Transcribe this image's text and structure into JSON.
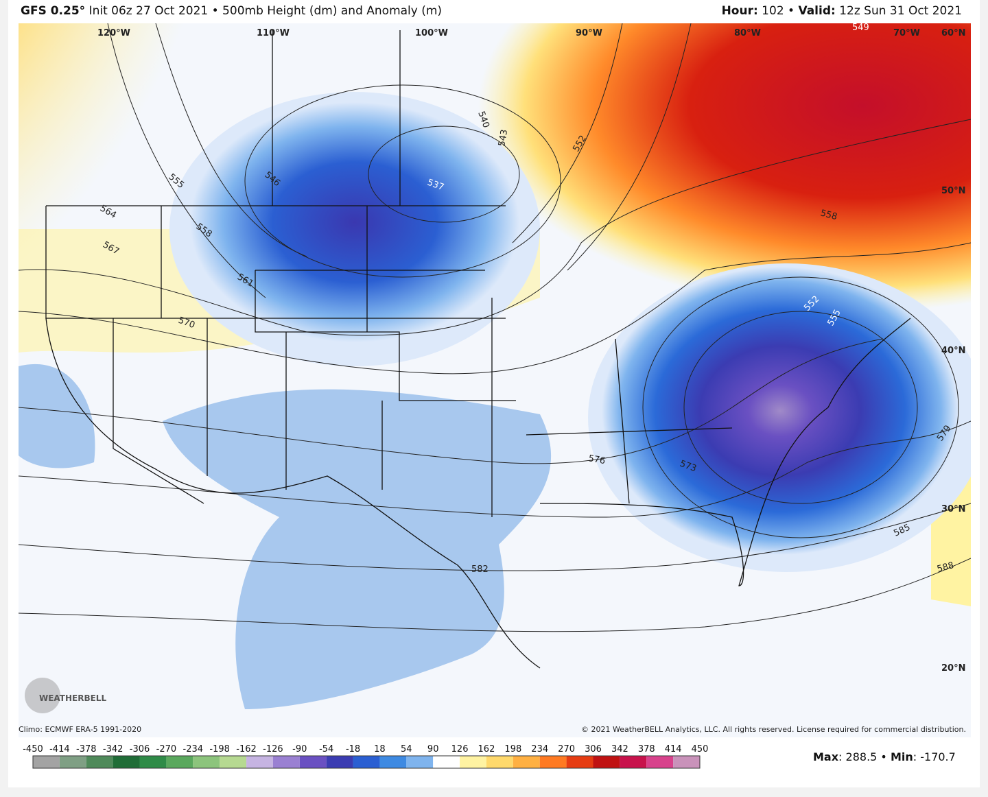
{
  "header": {
    "model": "GFS 0.25°",
    "description": " Init 06z 27 Oct 2021 • 500mb Height (dm) and Anomaly (m)",
    "hour_label": "Hour:",
    "hour": " 102 • ",
    "valid_label": "Valid:",
    "valid": " 12z Sun 31 Oct 2021"
  },
  "map": {
    "longitude_labels": [
      "120°W",
      "110°W",
      "100°W",
      "90°W",
      "80°W",
      "70°W"
    ],
    "latitude_labels": [
      "60°N",
      "50°N",
      "40°N",
      "30°N",
      "20°N"
    ],
    "contour_labels": [
      "549",
      "540",
      "543",
      "552",
      "537",
      "546",
      "555",
      "558",
      "564",
      "567",
      "561",
      "570",
      "558",
      "552",
      "555",
      "576",
      "573",
      "579",
      "585",
      "588",
      "582"
    ],
    "logo": "WEATHERBELL"
  },
  "footer": {
    "climo": "Climo: ECMWF ERA-5 1991-2020",
    "copyright": "© 2021 WeatherBELL Analytics, LLC. All rights reserved. License required for commercial distribution."
  },
  "colorbar": {
    "ticks": [
      -450,
      -414,
      -378,
      -342,
      -306,
      -270,
      -234,
      -198,
      -162,
      -126,
      -90,
      -54,
      -18,
      18,
      54,
      90,
      126,
      162,
      198,
      234,
      270,
      306,
      342,
      378,
      414,
      450
    ],
    "colors": [
      "#a3a3a3",
      "#7f9f84",
      "#4f8a5a",
      "#206d37",
      "#2f8b47",
      "#5aa85d",
      "#8cc47c",
      "#b6d991",
      "#c6b4e2",
      "#9a80d2",
      "#6a50c2",
      "#3b3cb2",
      "#2b5fd2",
      "#3e8ae2",
      "#7fb4ee",
      "#ffffff",
      "#fff3a2",
      "#ffd96c",
      "#ffb042",
      "#ff7a22",
      "#e63c12",
      "#c01212",
      "#c8124c",
      "#d8428c",
      "#c992ba"
    ]
  },
  "stats": {
    "max_label": "Max",
    "max": "288.5",
    "min_label": "Min",
    "min": "-170.7"
  }
}
